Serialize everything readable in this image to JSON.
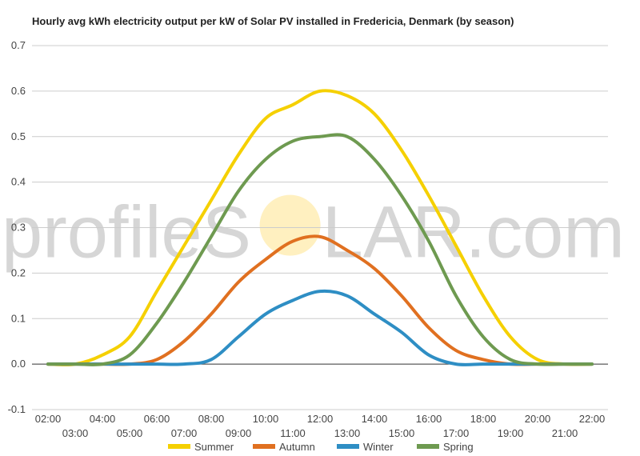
{
  "chart_data": {
    "type": "line",
    "title": "Hourly avg kWh electricity output per kW of Solar PV installed in Fredericia, Denmark (by season)",
    "xlabel": "",
    "ylabel": "",
    "ylim": [
      -0.1,
      0.7
    ],
    "yticks": [
      "0.7",
      "0.6",
      "0.5",
      "0.4",
      "0.3",
      "0.2",
      "0.1",
      "0.0",
      "-0.1"
    ],
    "x": [
      "02:00",
      "03:00",
      "04:00",
      "05:00",
      "06:00",
      "07:00",
      "08:00",
      "09:00",
      "10:00",
      "11:00",
      "12:00",
      "13:00",
      "14:00",
      "15:00",
      "16:00",
      "17:00",
      "18:00",
      "19:00",
      "20:00",
      "21:00",
      "22:00"
    ],
    "grid": true,
    "legend_position": "bottom",
    "series": [
      {
        "name": "Summer",
        "color": "#f5d000",
        "values": [
          0.0,
          0.0,
          0.02,
          0.06,
          0.16,
          0.26,
          0.36,
          0.46,
          0.54,
          0.57,
          0.6,
          0.59,
          0.55,
          0.47,
          0.37,
          0.26,
          0.15,
          0.06,
          0.01,
          0.0,
          0.0
        ]
      },
      {
        "name": "Autumn",
        "color": "#e07020",
        "values": [
          0.0,
          0.0,
          0.0,
          0.0,
          0.01,
          0.05,
          0.11,
          0.18,
          0.23,
          0.27,
          0.28,
          0.25,
          0.21,
          0.15,
          0.08,
          0.03,
          0.01,
          0.0,
          0.0,
          0.0,
          0.0
        ]
      },
      {
        "name": "Winter",
        "color": "#2e8ec4",
        "values": [
          0.0,
          0.0,
          0.0,
          0.0,
          0.0,
          0.0,
          0.01,
          0.06,
          0.11,
          0.14,
          0.16,
          0.15,
          0.11,
          0.07,
          0.02,
          0.0,
          0.0,
          0.0,
          0.0,
          0.0,
          0.0
        ]
      },
      {
        "name": "Spring",
        "color": "#6e9a50",
        "values": [
          0.0,
          0.0,
          0.0,
          0.02,
          0.09,
          0.18,
          0.28,
          0.38,
          0.45,
          0.49,
          0.5,
          0.5,
          0.45,
          0.37,
          0.27,
          0.15,
          0.06,
          0.01,
          0.0,
          0.0,
          0.0
        ]
      }
    ]
  },
  "watermark": {
    "text_left": "profileS",
    "text_right": "LAR.com",
    "sun_color": "#fff0c0"
  }
}
